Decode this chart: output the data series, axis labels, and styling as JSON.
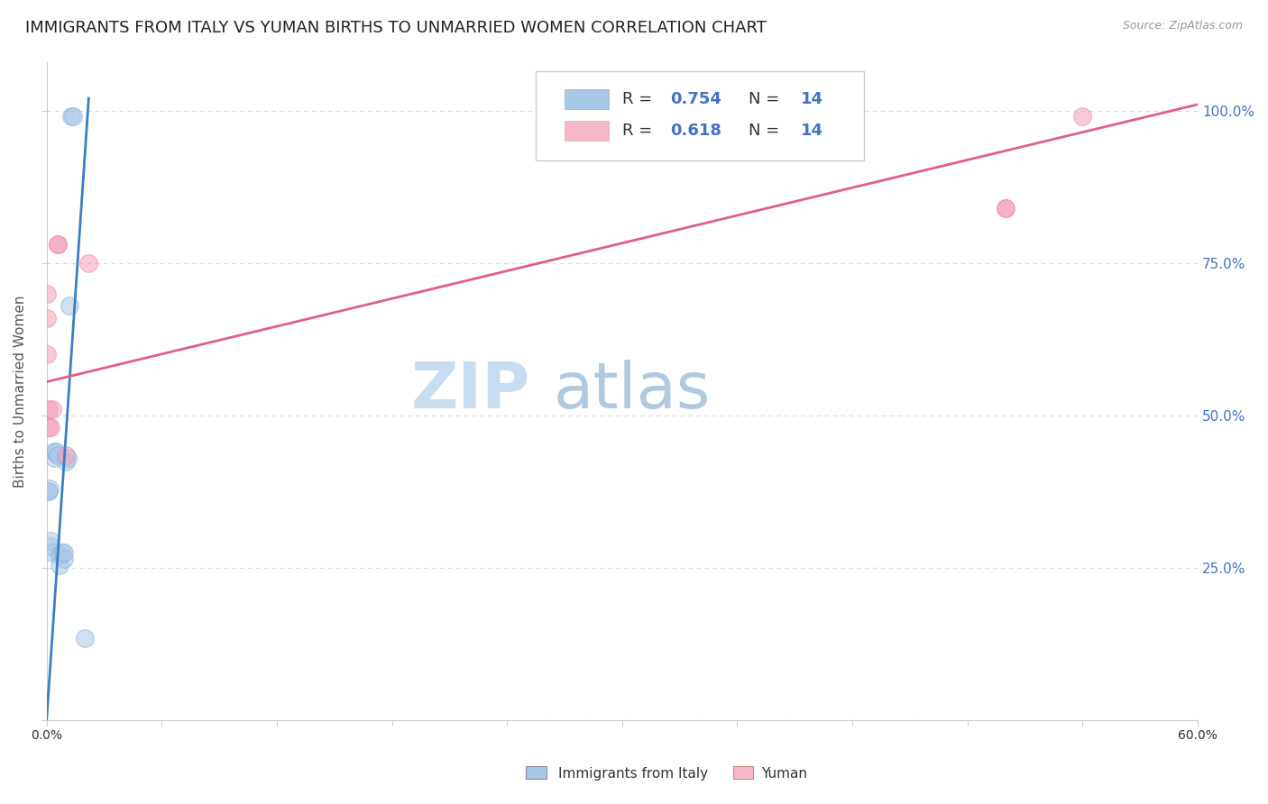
{
  "title": "IMMIGRANTS FROM ITALY VS YUMAN BIRTHS TO UNMARRIED WOMEN CORRELATION CHART",
  "source": "Source: ZipAtlas.com",
  "ylabel": "Births to Unmarried Women",
  "yticks": [
    0.0,
    0.25,
    0.5,
    0.75,
    1.0
  ],
  "ytick_labels": [
    "",
    "25.0%",
    "50.0%",
    "75.0%",
    "100.0%"
  ],
  "xlim": [
    0.0,
    0.6
  ],
  "ylim": [
    0.0,
    1.08
  ],
  "watermark_zip": "ZIP",
  "watermark_atlas": "atlas",
  "blue_scatter_x": [
    0.0005,
    0.001,
    0.0015,
    0.002,
    0.002,
    0.003,
    0.004,
    0.004,
    0.005,
    0.006,
    0.007,
    0.007,
    0.008,
    0.009,
    0.009,
    0.01,
    0.011,
    0.012,
    0.013,
    0.014,
    0.02
  ],
  "blue_scatter_y": [
    0.375,
    0.375,
    0.38,
    0.285,
    0.295,
    0.275,
    0.43,
    0.44,
    0.44,
    0.435,
    0.27,
    0.255,
    0.275,
    0.265,
    0.275,
    0.425,
    0.43,
    0.68,
    0.99,
    0.99,
    0.135
  ],
  "pink_scatter_x": [
    0.0,
    0.0,
    0.0,
    0.001,
    0.001,
    0.002,
    0.003,
    0.006,
    0.006,
    0.01,
    0.022,
    0.5,
    0.5,
    0.54
  ],
  "pink_scatter_y": [
    0.6,
    0.66,
    0.7,
    0.48,
    0.51,
    0.48,
    0.51,
    0.78,
    0.78,
    0.435,
    0.75,
    0.84,
    0.84,
    0.99
  ],
  "blue_line_x": [
    -0.001,
    0.022
  ],
  "blue_line_y": [
    -0.05,
    1.02
  ],
  "pink_line_x": [
    0.0,
    0.6
  ],
  "pink_line_y": [
    0.555,
    1.01
  ],
  "blue_fill_color": "#a8c8e8",
  "pink_fill_color": "#f4a0b8",
  "blue_edge_color": "#7aafda",
  "pink_edge_color": "#f080a0",
  "blue_line_color": "#3a7fc1",
  "pink_line_color": "#e06080",
  "scatter_size": 200,
  "scatter_alpha": 0.55,
  "background_color": "#ffffff",
  "grid_color": "#d0d8e8",
  "title_fontsize": 13,
  "axis_label_fontsize": 11,
  "tick_fontsize": 10,
  "source_fontsize": 9,
  "watermark_zip_color": "#c8ddf0",
  "watermark_atlas_color": "#b0c8e0",
  "right_tick_color": "#4472c4",
  "legend_blue_color": "#a8c8e8",
  "legend_pink_color": "#f4b8c8",
  "legend_text_color": "#333333",
  "legend_value_color": "#4472c4"
}
